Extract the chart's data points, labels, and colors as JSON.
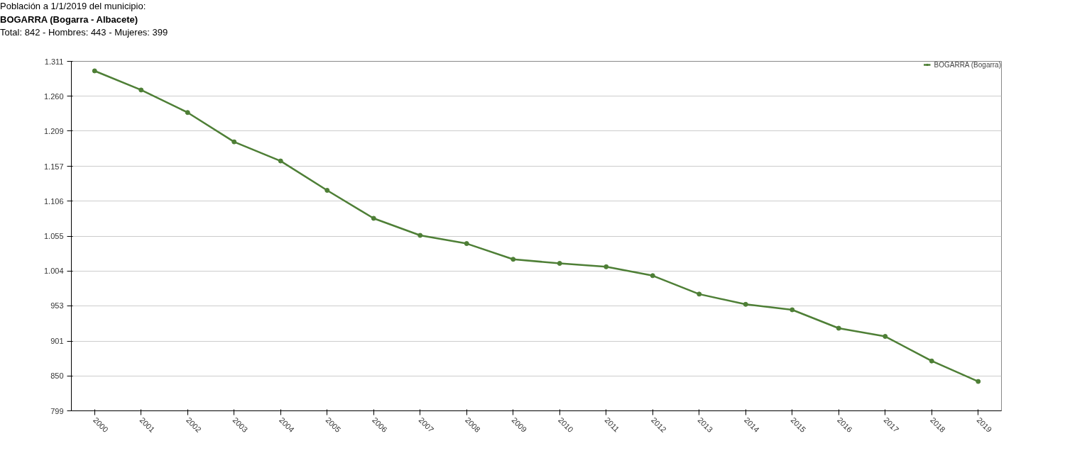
{
  "chart_data": {
    "type": "line",
    "title": "Población a 1/1/2019 del municipio:",
    "subtitle": "BOGARRA (Bogarra - Albacete)",
    "annotations": [
      "Total: 842 - Hombres: 443 - Mujeres: 399"
    ],
    "categories": [
      "2000",
      "2001",
      "2002",
      "2003",
      "2004",
      "2005",
      "2006",
      "2007",
      "2008",
      "2009",
      "2010",
      "2011",
      "2012",
      "2013",
      "2014",
      "2015",
      "2016",
      "2017",
      "2018",
      "2019"
    ],
    "series": [
      {
        "name": "BOGARRA (Bogarra)",
        "color": "#4e7f36",
        "values": [
          1297,
          1269,
          1236,
          1193,
          1165,
          1122,
          1081,
          1056,
          1044,
          1021,
          1015,
          1010,
          997,
          970,
          955,
          947,
          920,
          908,
          872,
          842
        ]
      }
    ],
    "ylim": [
      799,
      1311
    ],
    "yticks": [
      {
        "value": 799,
        "label": "799"
      },
      {
        "value": 850,
        "label": "850"
      },
      {
        "value": 901,
        "label": "901"
      },
      {
        "value": 953,
        "label": "953"
      },
      {
        "value": 1004,
        "label": "1.004"
      },
      {
        "value": 1055,
        "label": "1.055"
      },
      {
        "value": 1106,
        "label": "1.106"
      },
      {
        "value": 1157,
        "label": "1.157"
      },
      {
        "value": 1209,
        "label": "1.209"
      },
      {
        "value": 1260,
        "label": "1.260"
      },
      {
        "value": 1311,
        "label": "1.311"
      }
    ],
    "grid": "y",
    "legend": "top right",
    "marker": "circle",
    "line_style": "solid"
  }
}
